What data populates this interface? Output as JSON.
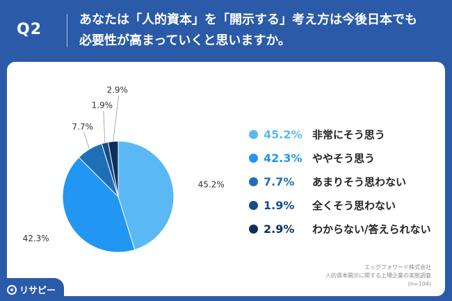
{
  "header": {
    "qnum": "Q2",
    "question_line1": "あなたは「人的資本」を「開示する」考え方は今後日本でも",
    "question_line2": "必要性が高まっていくと思いますか。"
  },
  "chart_data": {
    "type": "pie",
    "title": "",
    "slices": [
      {
        "label": "非常にそう思う",
        "value": 45.2,
        "value_label": "45.2%",
        "color": "#5ab8f5"
      },
      {
        "label": "ややそう思う",
        "value": 42.3,
        "value_label": "42.3%",
        "color": "#2196f3"
      },
      {
        "label": "あまりそう思わない",
        "value": 7.7,
        "value_label": "7.7%",
        "color": "#1f6fb8"
      },
      {
        "label": "全くそう思わない",
        "value": 1.9,
        "value_label": "1.9%",
        "color": "#154d8a"
      },
      {
        "label": "わからない/答えられない",
        "value": 2.9,
        "value_label": "2.9%",
        "color": "#0d2f5c"
      }
    ],
    "legend_position": "right"
  },
  "source": {
    "line1": "エッグフォワード株式会社",
    "line2": "人的資本開示に関する上場企業の実態調査",
    "line3": "(n=104)"
  },
  "logo": {
    "text": "リサピー",
    "icon": "logo-mark-icon"
  }
}
